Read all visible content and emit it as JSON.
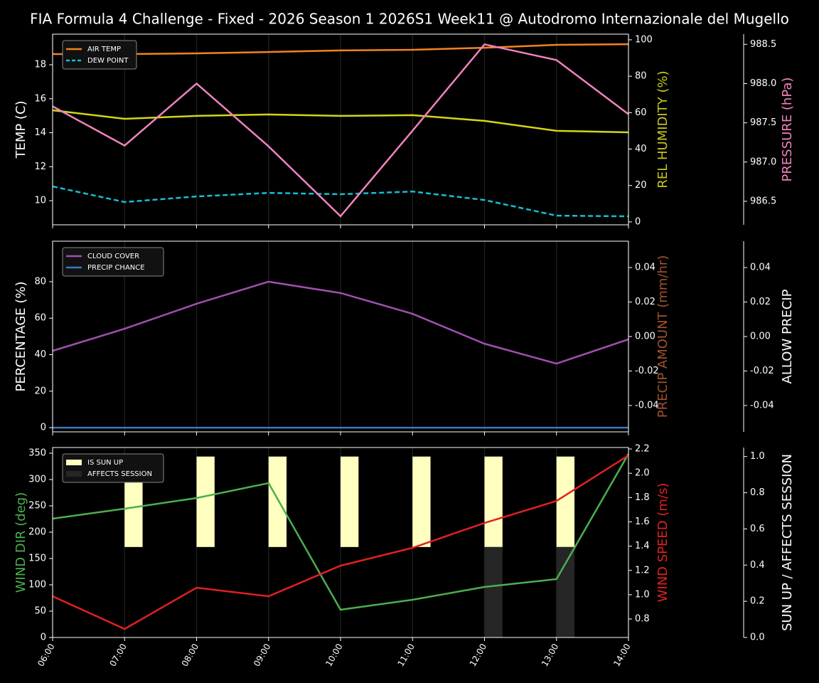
{
  "chart_data": [
    {
      "type": "line",
      "title": "FIA Formula 4 Challenge - Fixed - 2026 Season 1 2026S1 Week11 @ Autodromo Internazionale del Mugello",
      "ylabel": "TEMP (C)",
      "ycolor": "#ffffff",
      "ylim": [
        8.58,
        19.8
      ],
      "yticks": [
        10,
        12,
        14,
        16,
        18
      ],
      "y2label": "REL HUMIDITY (%)",
      "y2color": "#c8c81e",
      "y2lim": [
        -1.6,
        103.1
      ],
      "y2ticks": [
        0,
        20,
        40,
        60,
        80,
        100
      ],
      "y3label": "PRESSURE (hPa)",
      "y3color": "#f083c0",
      "y3lim": [
        986.2,
        988.63
      ],
      "y3ticks": [
        986.5,
        {
          "value": 987,
          "label": "987.0"
        },
        987.5,
        {
          "value": 988,
          "label": "988.0"
        },
        988.5
      ],
      "xgrid": true,
      "legend": "upper left",
      "series": [
        {
          "name": "AIR TEMP",
          "color": "#f5821f",
          "values": [
            18.63,
            18.63,
            18.67,
            18.75,
            18.84,
            18.88,
            19.0,
            19.17,
            19.21
          ]
        },
        {
          "name": "DEW POINT",
          "color": "#17becf",
          "dashed": true,
          "values": [
            10.84,
            9.92,
            10.25,
            10.46,
            10.38,
            10.54,
            10.04,
            9.12,
            9.08
          ]
        },
        {
          "color": "#d4d41a",
          "axis": "y2",
          "values": [
            61.3,
            56.6,
            58.2,
            59.0,
            58.2,
            58.6,
            55.5,
            50.0,
            49.2
          ]
        },
        {
          "color": "#f083c0",
          "axis": "y3",
          "values": [
            987.71,
            987.21,
            988.0,
            987.2,
            986.31,
            987.4,
            988.5,
            988.3,
            987.61
          ]
        }
      ]
    },
    {
      "type": "line",
      "ylabel": "PERCENTAGE (%)",
      "ycolor": "#ffffff",
      "ylim": [
        -2.3,
        102.2
      ],
      "yticks": [
        0,
        20,
        40,
        60,
        80
      ],
      "y2label": "PRECIP AMOUNT (mm/hr)",
      "y2color": "#a0522d",
      "y2lim": [
        -0.0553,
        0.0553
      ],
      "y2ticks": [
        -0.04,
        -0.02,
        {
          "value": 0,
          "label": "0.00"
        },
        0.02,
        0.04
      ],
      "y3label": "ALLOW PRECIP",
      "y3color": "#ffffff",
      "y3lim": [
        -0.0553,
        0.0553
      ],
      "y3ticks": [
        -0.04,
        -0.02,
        {
          "value": 0,
          "label": "0.00"
        },
        0.02,
        0.04
      ],
      "xgrid": true,
      "legend": "upper left",
      "series": [
        {
          "name": "CLOUD COVER",
          "color": "#a050b0",
          "values": [
            42.1,
            54.2,
            67.9,
            80.0,
            73.8,
            62.4,
            46.0,
            35.1,
            48.4
          ]
        },
        {
          "name": "PRECIP CHANCE",
          "color": "#3a78c0",
          "values": [
            0,
            0,
            0,
            0,
            0,
            0,
            0,
            0,
            0
          ]
        }
      ]
    },
    {
      "type": "line",
      "categories": [
        "06:00",
        "07:00",
        "08:00",
        "09:00",
        "10:00",
        "11:00",
        "12:00",
        "13:00",
        "14:00"
      ],
      "ylabel": "WIND DIR (deg)",
      "ycolor": "#4caf50",
      "ylim": [
        0,
        360.8
      ],
      "yticks": [
        0,
        50,
        100,
        150,
        200,
        250,
        300,
        350
      ],
      "y2label": "WIND SPEED (m/s)",
      "y2color": "#e02020",
      "y2lim": [
        0.648,
        2.212
      ],
      "y2ticks": [
        0.8,
        {
          "value": 1,
          "label": "1.0"
        },
        1.2,
        1.4,
        1.6,
        1.8,
        {
          "value": 2,
          "label": "2.0"
        },
        2.2
      ],
      "y3label": "SUN UP / AFFECTS SESSION",
      "y3color": "#ffffff",
      "y3lim": [
        0,
        1.05
      ],
      "y3ticks": [
        {
          "value": 0,
          "label": "0.0"
        },
        0.2,
        0.4,
        0.6,
        0.8,
        {
          "value": 1,
          "label": "1.0"
        }
      ],
      "xgrid": true,
      "legend": "upper left",
      "series": [
        {
          "name": "IS SUN UP",
          "type": "bar",
          "axis": "y3",
          "bottom": 0.5,
          "color": "#ffffc0",
          "values": [
            0,
            1,
            1,
            1,
            1,
            1,
            1,
            1,
            0
          ]
        },
        {
          "name": "AFFECTS SESSION",
          "type": "bar",
          "axis": "y3",
          "color": "#262626",
          "values": [
            0,
            0,
            0,
            0,
            0,
            0,
            0.5,
            0.5,
            0
          ]
        },
        {
          "color": "#4caf50",
          "values": [
            225.7,
            244.6,
            264.9,
            293.2,
            52.7,
            71.6,
            95.9,
            110.8,
            348.6
          ]
        },
        {
          "color": "#e02020",
          "axis": "y2",
          "values": [
            0.987,
            0.718,
            1.058,
            0.987,
            1.239,
            1.386,
            1.591,
            1.772,
            2.147
          ]
        }
      ]
    }
  ]
}
